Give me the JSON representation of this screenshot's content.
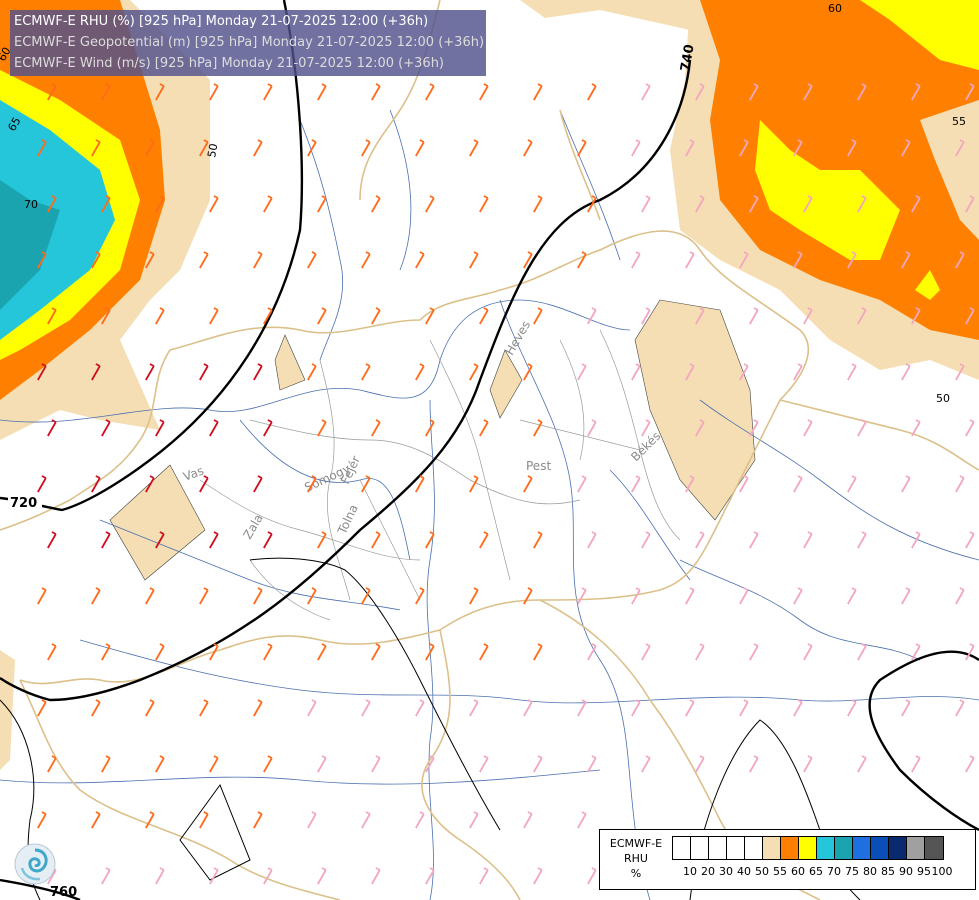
{
  "header": {
    "line1": "ECMWF-E RHU (%) [925 hPa] Monday 21-07-2025 12:00 (+36h)",
    "line2": "ECMWF-E Geopotential (m) [925 hPa] Monday 21-07-2025 12:00 (+36h)",
    "line3": "ECMWF-E Wind (m/s) [925 hPa] Monday 21-07-2025 12:00 (+36h)"
  },
  "contour_labels": {
    "geo_740": "740",
    "geo_720": "720",
    "geo_760": "760",
    "rh_50_upper": "50",
    "rh_50_right": "50",
    "rh_55": "55",
    "rh_60_top": "60",
    "rh_60_left": "60",
    "rh_65": "65",
    "rh_70": "70"
  },
  "county_labels": {
    "heves": "Heves",
    "pest": "Pest",
    "bekes": "Békés",
    "vas": "Vas",
    "zala": "Zala",
    "somogy": "Somogy",
    "fejer": "Fejér",
    "tolna": "Tolna"
  },
  "legend": {
    "title_line1": "ECMWF-E",
    "title_line2": "RHU",
    "title_line3": "%",
    "ticks": [
      "10",
      "20",
      "30",
      "40",
      "50",
      "55",
      "60",
      "65",
      "70",
      "75",
      "80",
      "85",
      "90",
      "95",
      "100"
    ],
    "colors": [
      "#ffffff",
      "#ffffff",
      "#ffffff",
      "#ffffff",
      "#ffffff",
      "#f5deb3",
      "#ff8000",
      "#ffff00",
      "#26c6da",
      "#1aa4b0",
      "#1e6fe0",
      "#0a4fb8",
      "#0a2a70",
      "#a0a0a0",
      "#555555"
    ]
  },
  "logo": "ecmwf-swirl-icon"
}
